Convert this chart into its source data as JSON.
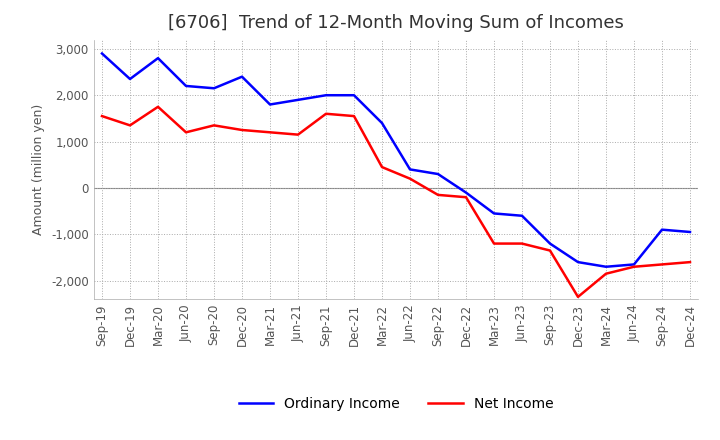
{
  "title": "[6706]  Trend of 12-Month Moving Sum of Incomes",
  "ylabel": "Amount (million yen)",
  "ylim": [
    -2400,
    3200
  ],
  "yticks": [
    -2000,
    -1000,
    0,
    1000,
    2000,
    3000
  ],
  "x_labels": [
    "Sep-19",
    "Dec-19",
    "Mar-20",
    "Jun-20",
    "Sep-20",
    "Dec-20",
    "Mar-21",
    "Jun-21",
    "Sep-21",
    "Dec-21",
    "Mar-22",
    "Jun-22",
    "Sep-22",
    "Dec-22",
    "Mar-23",
    "Jun-23",
    "Sep-23",
    "Dec-23",
    "Mar-24",
    "Jun-24",
    "Sep-24",
    "Dec-24"
  ],
  "ordinary_income": [
    2900,
    2350,
    2800,
    2200,
    2150,
    2400,
    1800,
    1900,
    2000,
    2000,
    1400,
    400,
    300,
    -100,
    -550,
    -600,
    -1200,
    -1600,
    -1700,
    -1650,
    -900,
    -950
  ],
  "net_income": [
    1550,
    1350,
    1750,
    1200,
    1350,
    1250,
    1200,
    1150,
    1600,
    1550,
    450,
    200,
    -150,
    -200,
    -1200,
    -1200,
    -1350,
    -2350,
    -1850,
    -1700,
    -1650,
    -1600
  ],
  "ordinary_color": "#0000ff",
  "net_color": "#ff0000",
  "grid_color": "#aaaaaa",
  "background_color": "#ffffff",
  "title_fontsize": 13,
  "ylabel_fontsize": 9,
  "tick_fontsize": 8.5,
  "legend_fontsize": 10
}
